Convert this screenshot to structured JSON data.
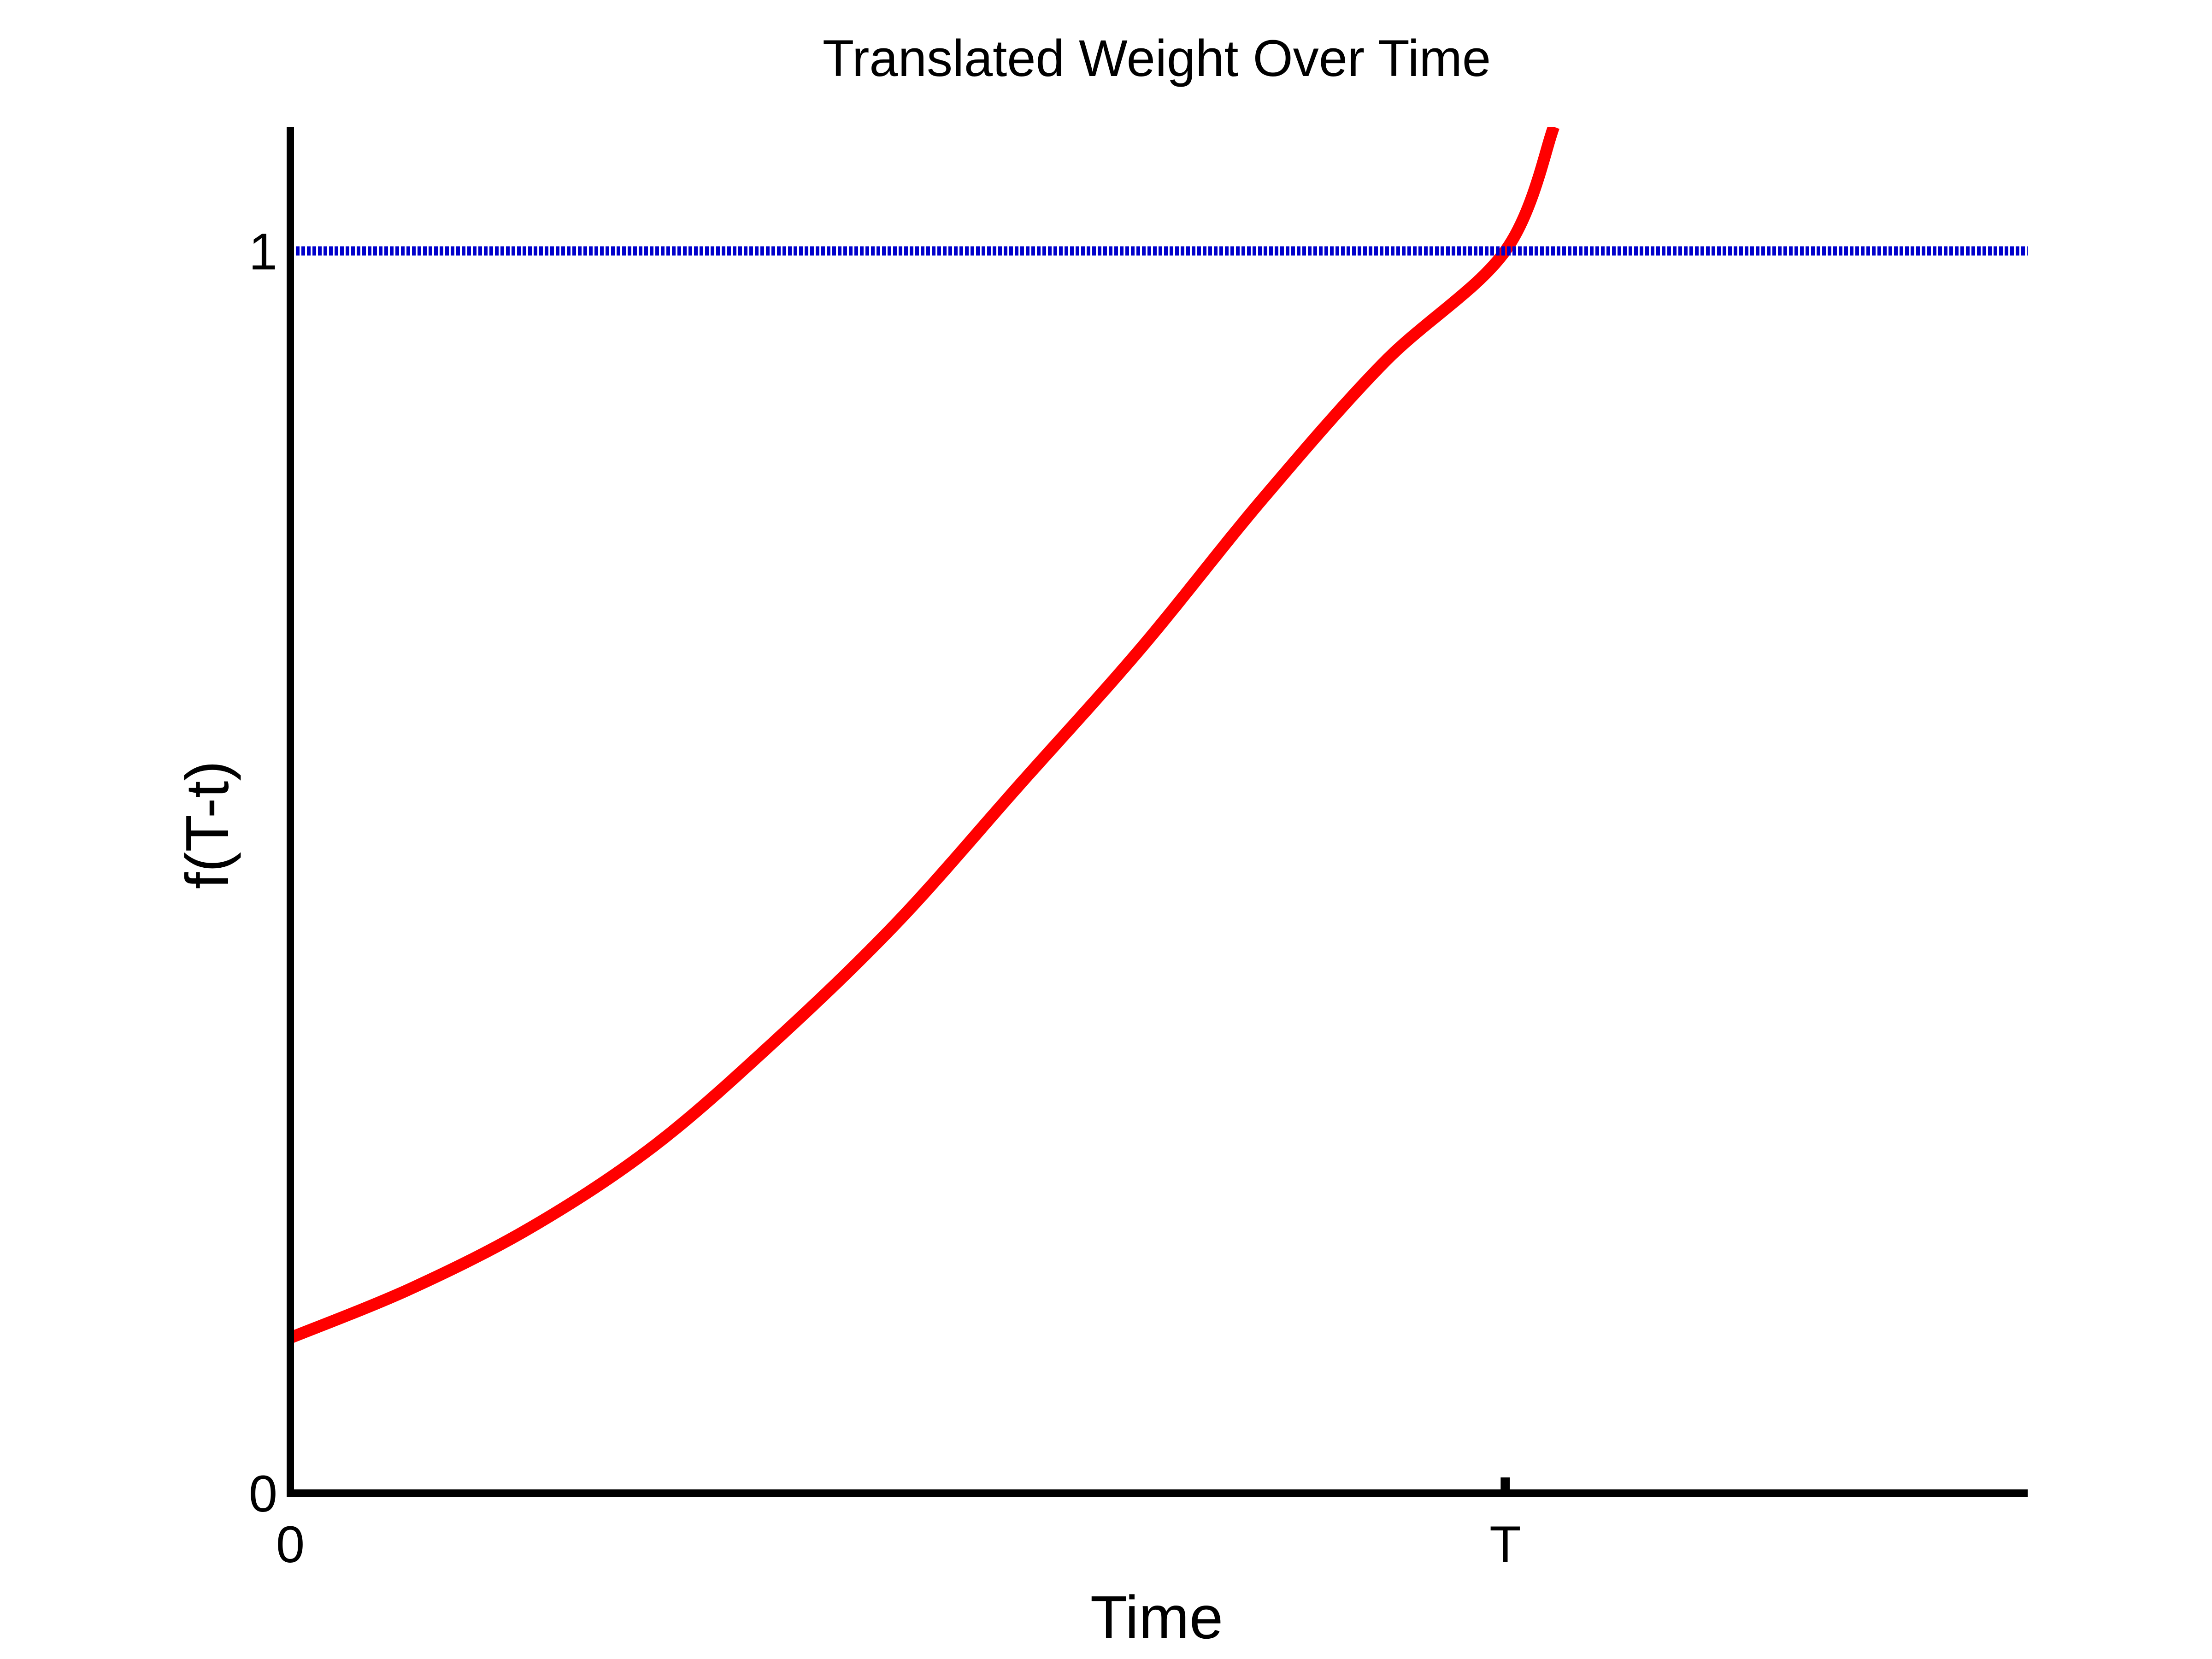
{
  "chart_data": {
    "type": "line",
    "title": "Translated Weight Over Time",
    "xlabel": "Time",
    "ylabel": "f(T-t)",
    "x_ticks": [
      {
        "label": "0",
        "value": 0
      },
      {
        "label": "T",
        "value": 1
      }
    ],
    "y_ticks": [
      {
        "label": "0",
        "value": 0
      },
      {
        "label": "1",
        "value": 1
      }
    ],
    "xlim": [
      0,
      1.43
    ],
    "ylim": [
      0,
      1.1
    ],
    "grid": false,
    "legend": "none",
    "series": [
      {
        "color": "#ff0000",
        "style": "solid",
        "x": [
          0,
          0.1,
          0.2,
          0.3,
          0.4,
          0.5,
          0.6,
          0.7,
          0.8,
          0.9,
          1.0,
          1.04
        ],
        "y": [
          0.125,
          0.165,
          0.215,
          0.28,
          0.365,
          0.46,
          0.57,
          0.68,
          0.8,
          0.91,
          1.0,
          1.1
        ]
      },
      {
        "color": "#0000cc",
        "style": "dotted",
        "x": [
          0,
          1.43
        ],
        "y": [
          1,
          1
        ]
      }
    ]
  }
}
